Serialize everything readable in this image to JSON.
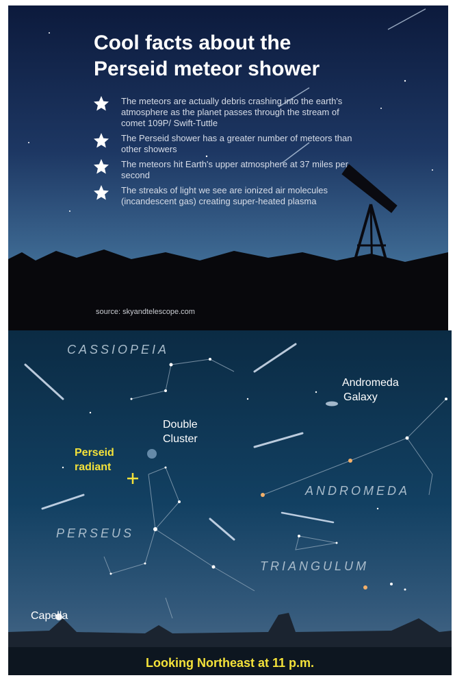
{
  "header": {
    "title_lines": [
      "Cool facts about the",
      "Perseid meteor shower"
    ]
  },
  "facts": [
    "The meteors are actually debris crashing into the earth's atmosphere as the planet passes through the stream of comet 109P/ Swift-Tuttle",
    "The Perseid shower has a greater number of meteors than other showers",
    "The meteors hit Earth's upper atmosphere at 37 miles per second",
    "The streaks of light we see are ionized air molecules (incandescent gas) creating super-heated plasma"
  ],
  "source": "source: skyandtelescope.com",
  "sky_map": {
    "labels": {
      "cassiopeia": "CASSIOPEIA",
      "andromeda_galaxy": [
        "Andromeda",
        "Galaxy"
      ],
      "double_cluster": [
        "Double",
        "Cluster"
      ],
      "perseid_radiant": [
        "Perseid",
        "radiant"
      ],
      "andromeda": "ANDROMEDA",
      "perseus": "PERSEUS",
      "triangulum": "TRIANGULUM",
      "capella": "Capella"
    },
    "caption": "Looking Northeast at 11 p.m."
  }
}
